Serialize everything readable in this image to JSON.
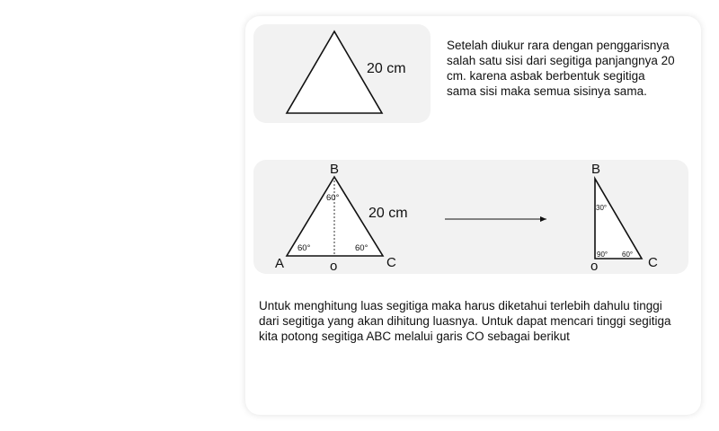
{
  "figure1": {
    "side_label": "20 cm"
  },
  "description": "Setelah diukur rara dengan penggarisnya salah satu sisi dari segitiga panjangnya 20 cm. karena asbak berbentuk segitiga sama sisi maka semua sisinya sama.",
  "figure2": {
    "side_label": "20 cm",
    "points": {
      "A": "A",
      "B": "B",
      "C": "C",
      "O": "o"
    },
    "angles": {
      "top": "60°",
      "left": "60°",
      "right": "60°"
    }
  },
  "figure3": {
    "points": {
      "B": "B",
      "C": "C",
      "O": "o"
    },
    "angles": {
      "top": "30°",
      "right_angle": "90°",
      "bottom": "60°"
    }
  },
  "paragraph": "Untuk menghitung luas segitiga maka harus diketahui terlebih dahulu tinggi dari segitiga yang akan dihitung luasnya. Untuk dapat mencari tinggi segitiga kita potong segitiga ABC melalui garis CO sebagai berikut"
}
